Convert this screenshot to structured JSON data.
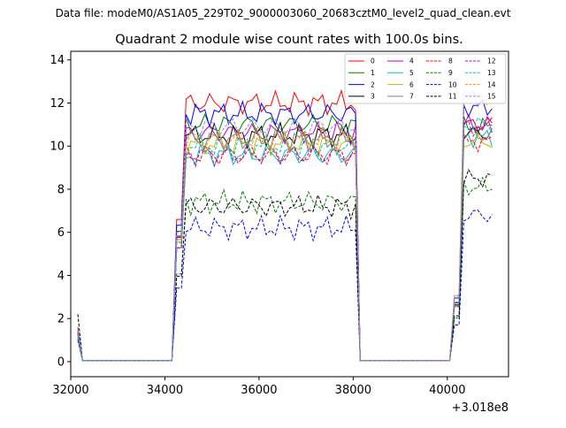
{
  "chart_data": {
    "type": "line",
    "suptitle": "Data file: modeM0/AS1A05_229T02_9000003060_20683cztM0_level2_quad_clean.evt",
    "title": "Quadrant 2 module wise count rates with 100.0s bins.",
    "xlabel": "",
    "ylabel": "",
    "x_offset_label": "+3.018e8",
    "xlim": [
      32000,
      41300
    ],
    "ylim": [
      -0.7,
      14.4
    ],
    "xticks": [
      32000,
      34000,
      36000,
      38000,
      40000
    ],
    "xtick_labels": [
      "32000",
      "34000",
      "36000",
      "38000",
      "40000"
    ],
    "yticks": [
      0,
      2,
      4,
      6,
      8,
      10,
      12,
      14
    ],
    "ytick_labels": [
      "0",
      "2",
      "4",
      "6",
      "8",
      "10",
      "12",
      "14"
    ],
    "grid": false,
    "legend_position": "top-right",
    "legend_columns": 4,
    "segments": [
      {
        "t_start": 32150,
        "t_end": 32250
      },
      {
        "t_start": 32250,
        "t_end": 34250
      },
      {
        "t_start": 34250,
        "t_end": 38150
      },
      {
        "t_start": 38150,
        "t_end": 40150
      },
      {
        "t_start": 40150,
        "t_end": 40950
      }
    ],
    "series": [
      {
        "name": "0",
        "color": "#ff0000",
        "dash": "solid",
        "start": 1.6,
        "active": 12.0,
        "end": 11.0
      },
      {
        "name": "1",
        "color": "#008000",
        "dash": "solid",
        "start": 1.3,
        "active": 11.0,
        "end": 10.9
      },
      {
        "name": "2",
        "color": "#0000ff",
        "dash": "solid",
        "start": 1.5,
        "active": 11.5,
        "end": 11.8
      },
      {
        "name": "3",
        "color": "#000000",
        "dash": "solid",
        "start": 1.4,
        "active": 10.5,
        "end": 10.6
      },
      {
        "name": "4",
        "color": "#bf00bf",
        "dash": "solid",
        "start": 1.4,
        "active": 10.6,
        "end": 11.0
      },
      {
        "name": "5",
        "color": "#00bfbf",
        "dash": "solid",
        "start": 1.3,
        "active": 9.6,
        "end": 10.4
      },
      {
        "name": "6",
        "color": "#bfbf00",
        "dash": "solid",
        "start": 1.3,
        "active": 10.1,
        "end": 10.2
      },
      {
        "name": "7",
        "color": "#808080",
        "dash": "solid",
        "start": 1.4,
        "active": 10.3,
        "end": 10.5
      },
      {
        "name": "8",
        "color": "#ff0000",
        "dash": "dashed",
        "start": 1.3,
        "active": 9.6,
        "end": 10.2
      },
      {
        "name": "9",
        "color": "#008000",
        "dash": "dashed",
        "start": 1.1,
        "active": 7.4,
        "end": 8.1
      },
      {
        "name": "10",
        "color": "#0000ff",
        "dash": "dashed",
        "start": 1.0,
        "active": 6.2,
        "end": 6.8
      },
      {
        "name": "11",
        "color": "#000000",
        "dash": "dashed",
        "start": 2.2,
        "active": 7.2,
        "end": 8.5
      },
      {
        "name": "12",
        "color": "#bf00bf",
        "dash": "dashed",
        "start": 1.3,
        "active": 9.6,
        "end": 10.9
      },
      {
        "name": "13",
        "color": "#00bfbf",
        "dash": "dashed",
        "start": 1.2,
        "active": 10.0,
        "end": 11.0
      },
      {
        "name": "14",
        "color": "#ff8c00",
        "dash": "dashed",
        "start": 1.5,
        "active": 10.3,
        "end": 12.2
      },
      {
        "name": "15",
        "color": "#8888ff",
        "dash": "dashed",
        "start": 1.5,
        "active": 10.9,
        "end": 12.3
      }
    ]
  }
}
